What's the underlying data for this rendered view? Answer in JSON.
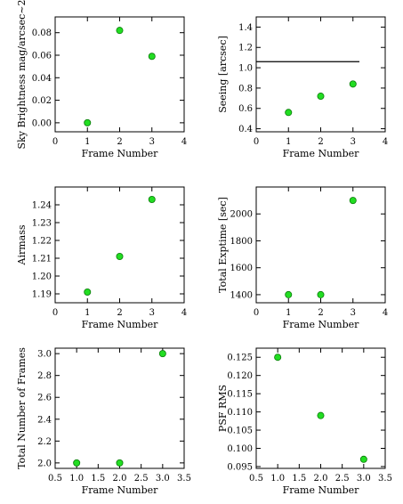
{
  "chart_data": [
    {
      "type": "scatter",
      "xlabel": "Frame Number",
      "ylabel": "Sky Brightness mag/arcsec~2",
      "xlim": [
        0,
        4
      ],
      "ylim": [
        -0.008,
        0.094
      ],
      "xticks": [
        0,
        1,
        2,
        3,
        4
      ],
      "yticks": [
        0.0,
        0.02,
        0.04,
        0.06,
        0.08
      ],
      "ytick_labels": [
        "0.00",
        "0.02",
        "0.04",
        "0.06",
        "0.08"
      ],
      "series": [
        {
          "x": [
            1,
            2,
            3
          ],
          "y": [
            0.0,
            0.082,
            0.059
          ]
        }
      ],
      "marker_color": "#22dd22"
    },
    {
      "type": "scatter",
      "xlabel": "Frame Number",
      "ylabel": "Seeing [arcsec]",
      "xlim": [
        0,
        4
      ],
      "ylim": [
        0.37,
        1.5
      ],
      "xticks": [
        0,
        1,
        2,
        3,
        4
      ],
      "yticks": [
        0.4,
        0.6,
        0.8,
        1.0,
        1.2,
        1.4
      ],
      "ytick_labels": [
        "0.4",
        "0.6",
        "0.8",
        "1.0",
        "1.2",
        "1.4"
      ],
      "series": [
        {
          "x": [
            1,
            2,
            3
          ],
          "y": [
            0.56,
            0.72,
            0.84
          ]
        }
      ],
      "hline": {
        "y": 1.06,
        "x_from": 0,
        "x_to": 3.2
      },
      "marker_color": "#22dd22"
    },
    {
      "type": "scatter",
      "xlabel": "Frame Number",
      "ylabel": "Airmass",
      "xlim": [
        0,
        4
      ],
      "ylim": [
        1.185,
        1.25
      ],
      "xticks": [
        0,
        1,
        2,
        3,
        4
      ],
      "yticks": [
        1.19,
        1.2,
        1.21,
        1.22,
        1.23,
        1.24
      ],
      "ytick_labels": [
        "1.19",
        "1.20",
        "1.21",
        "1.22",
        "1.23",
        "1.24"
      ],
      "series": [
        {
          "x": [
            1,
            2,
            3
          ],
          "y": [
            1.191,
            1.211,
            1.243
          ]
        }
      ],
      "marker_color": "#22dd22"
    },
    {
      "type": "scatter",
      "xlabel": "Frame Number",
      "ylabel": "Total Exptime [sec]",
      "xlim": [
        0,
        4
      ],
      "ylim": [
        1340,
        2200
      ],
      "xticks": [
        0,
        1,
        2,
        3,
        4
      ],
      "yticks": [
        1400,
        1600,
        1800,
        2000
      ],
      "ytick_labels": [
        "1400",
        "1600",
        "1800",
        "2000"
      ],
      "series": [
        {
          "x": [
            1,
            2,
            3
          ],
          "y": [
            1400,
            1400,
            2100
          ]
        }
      ],
      "marker_color": "#22dd22"
    },
    {
      "type": "scatter",
      "xlabel": "Frame Number",
      "ylabel": "Total Number of Frames",
      "xlim": [
        0.5,
        3.5
      ],
      "ylim": [
        1.95,
        3.05
      ],
      "xticks": [
        0.5,
        1.0,
        1.5,
        2.0,
        2.5,
        3.0,
        3.5
      ],
      "xtick_labels": [
        "0.5",
        "1.0",
        "1.5",
        "2.0",
        "2.5",
        "3.0",
        "3.5"
      ],
      "yticks": [
        2.0,
        2.2,
        2.4,
        2.6,
        2.8,
        3.0
      ],
      "ytick_labels": [
        "2.0",
        "2.2",
        "2.4",
        "2.6",
        "2.8",
        "3.0"
      ],
      "series": [
        {
          "x": [
            1,
            2,
            3
          ],
          "y": [
            2.0,
            2.0,
            3.0
          ]
        }
      ],
      "marker_color": "#22dd22"
    },
    {
      "type": "scatter",
      "xlabel": "Frame Number",
      "ylabel": "PSF RMS",
      "xlim": [
        0.5,
        3.5
      ],
      "ylim": [
        0.0945,
        0.1275
      ],
      "xticks": [
        0.5,
        1.0,
        1.5,
        2.0,
        2.5,
        3.0,
        3.5
      ],
      "xtick_labels": [
        "0.5",
        "1.0",
        "1.5",
        "2.0",
        "2.5",
        "3.0",
        "3.5"
      ],
      "yticks": [
        0.095,
        0.1,
        0.105,
        0.11,
        0.115,
        0.12,
        0.125
      ],
      "ytick_labels": [
        "0.095",
        "0.100",
        "0.105",
        "0.110",
        "0.115",
        "0.120",
        "0.125"
      ],
      "series": [
        {
          "x": [
            1,
            2,
            3
          ],
          "y": [
            0.125,
            0.109,
            0.097
          ]
        }
      ],
      "marker_color": "#22dd22"
    }
  ]
}
